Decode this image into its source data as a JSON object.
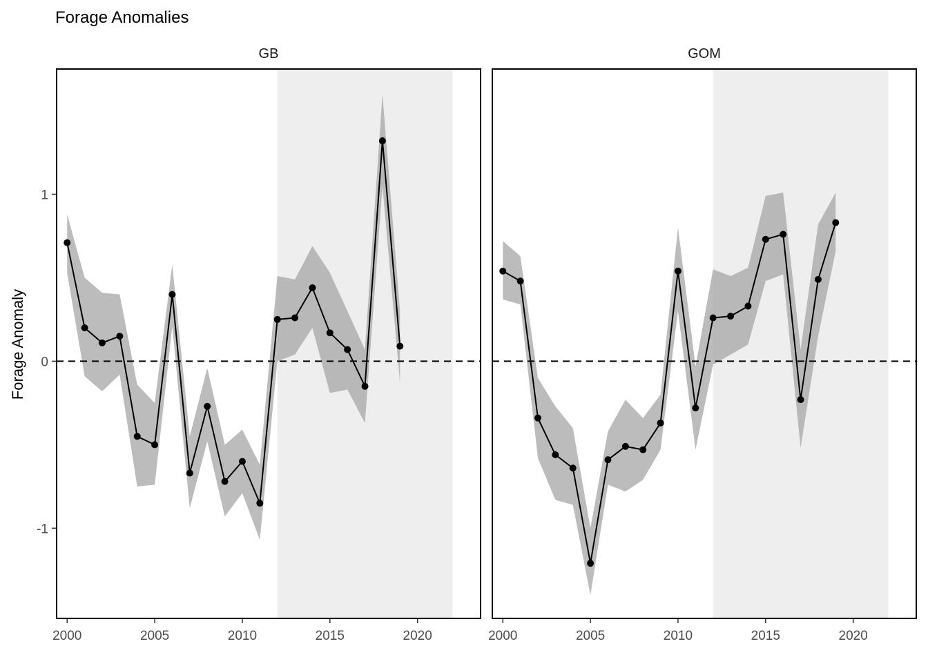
{
  "chart_data": {
    "type": "line",
    "title": "Forage Anomalies",
    "xlabel": "",
    "ylabel": "Forage Anomaly",
    "xlim": [
      1999.4,
      2023.6
    ],
    "ylim": [
      -1.54,
      1.75
    ],
    "x_ticks": [
      2000,
      2005,
      2010,
      2015,
      2020
    ],
    "x_tick_labels": [
      "2000",
      "2005",
      "2010",
      "2015",
      "2020"
    ],
    "y_ticks": [
      -1,
      0,
      1
    ],
    "y_tick_labels": [
      "-1",
      "0",
      "1"
    ],
    "reference_line": {
      "y": 0,
      "style": "dashed"
    },
    "highlight_range": [
      2012,
      2022
    ],
    "colors": {
      "line": "#000000",
      "points": "#000000",
      "ribbon": "#a6a6a6",
      "highlight": "#eeeeee",
      "reference": "#000000"
    },
    "panels": [
      {
        "name": "GB",
        "x": [
          2000,
          2001,
          2002,
          2003,
          2004,
          2005,
          2006,
          2007,
          2008,
          2009,
          2010,
          2011,
          2012,
          2013,
          2014,
          2015,
          2016,
          2017,
          2018,
          2019
        ],
        "y": [
          0.71,
          0.2,
          0.11,
          0.15,
          -0.45,
          -0.5,
          0.4,
          -0.67,
          -0.27,
          -0.72,
          -0.6,
          -0.85,
          0.25,
          0.26,
          0.44,
          0.17,
          0.07,
          -0.15,
          1.32,
          0.09
        ],
        "lower": [
          0.53,
          -0.09,
          -0.18,
          -0.08,
          -0.75,
          -0.74,
          0.21,
          -0.88,
          -0.48,
          -0.93,
          -0.79,
          -1.07,
          0.0,
          0.04,
          0.2,
          -0.19,
          -0.17,
          -0.37,
          1.05,
          -0.13
        ],
        "upper": [
          0.88,
          0.5,
          0.41,
          0.4,
          -0.14,
          -0.25,
          0.58,
          -0.45,
          -0.04,
          -0.5,
          -0.41,
          -0.62,
          0.51,
          0.49,
          0.69,
          0.53,
          0.3,
          0.07,
          1.6,
          0.3
        ]
      },
      {
        "name": "GOM",
        "x": [
          2000,
          2001,
          2002,
          2003,
          2004,
          2005,
          2006,
          2007,
          2008,
          2009,
          2010,
          2011,
          2012,
          2013,
          2014,
          2015,
          2016,
          2017,
          2018,
          2019
        ],
        "y": [
          0.54,
          0.48,
          -0.34,
          -0.56,
          -0.64,
          -1.21,
          -0.59,
          -0.51,
          -0.53,
          -0.37,
          0.54,
          -0.28,
          0.26,
          0.27,
          0.33,
          0.73,
          0.76,
          -0.23,
          0.49,
          0.83
        ],
        "lower": [
          0.37,
          0.34,
          -0.58,
          -0.83,
          -0.86,
          -1.4,
          -0.74,
          -0.78,
          -0.71,
          -0.53,
          0.3,
          -0.53,
          -0.02,
          0.04,
          0.1,
          0.48,
          0.52,
          -0.52,
          0.15,
          0.66
        ],
        "upper": [
          0.72,
          0.63,
          -0.1,
          -0.27,
          -0.4,
          -1.0,
          -0.42,
          -0.23,
          -0.34,
          -0.2,
          0.8,
          -0.03,
          0.55,
          0.51,
          0.56,
          0.99,
          1.01,
          0.07,
          0.82,
          1.01
        ]
      }
    ]
  }
}
